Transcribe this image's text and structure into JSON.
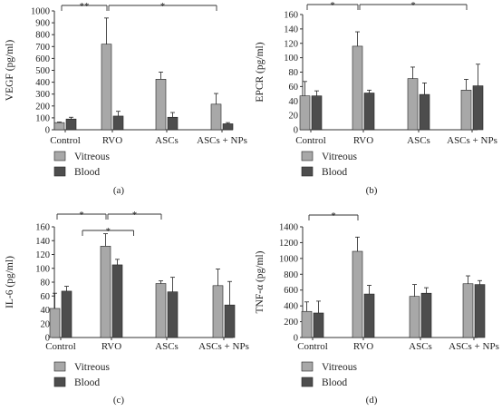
{
  "colors": {
    "vitreous": "#a8a8a8",
    "blood": "#4d4d4d",
    "axis": "#333333",
    "bracket": "#333333"
  },
  "chart_data": [
    {
      "type": "bar",
      "panel_label": "(a)",
      "ylabel": "VEGF (pg/ml)",
      "categories": [
        "Control",
        "RVO",
        "ASCs",
        "ASCs + NPs"
      ],
      "ylim": [
        0,
        1000
      ],
      "yticks": [
        0,
        100,
        200,
        300,
        400,
        500,
        600,
        700,
        800,
        900,
        1000
      ],
      "series": [
        {
          "name": "Vitreous",
          "values": [
            60,
            720,
            425,
            215
          ],
          "errors": [
            5,
            220,
            60,
            90
          ]
        },
        {
          "name": "Blood",
          "values": [
            90,
            115,
            105,
            50
          ],
          "errors": [
            15,
            40,
            40,
            10
          ]
        }
      ],
      "legend": [
        "Vitreous",
        "Blood"
      ],
      "annotations": [
        {
          "from": 0,
          "to": 1,
          "text": "**"
        },
        {
          "from": 1,
          "to": 3,
          "text": "*"
        }
      ]
    },
    {
      "type": "bar",
      "panel_label": "(b)",
      "ylabel": "EPCR (pg/ml)",
      "categories": [
        "Control",
        "RVO",
        "ASCs",
        "ASCs + NPs"
      ],
      "ylim": [
        0,
        160
      ],
      "yticks": [
        0,
        20,
        40,
        60,
        80,
        100,
        120,
        140,
        160
      ],
      "series": [
        {
          "name": "Vitreous",
          "values": [
            47,
            116,
            71,
            55
          ],
          "errors": [
            20,
            20,
            16,
            15
          ]
        },
        {
          "name": "Blood",
          "values": [
            47,
            51,
            49,
            61
          ],
          "errors": [
            7,
            4,
            16,
            30
          ]
        }
      ],
      "legend": [
        "Vitreous",
        "Blood"
      ],
      "annotations": [
        {
          "from": 0,
          "to": 1,
          "text": "*"
        },
        {
          "from": 1,
          "to": 3,
          "text": "*"
        }
      ]
    },
    {
      "type": "bar",
      "panel_label": "(c)",
      "ylabel": "IL-6 (pg/ml)",
      "categories": [
        "Control",
        "RVO",
        "ASCs",
        "ASCs + NPs"
      ],
      "ylim": [
        0,
        160
      ],
      "yticks": [
        0,
        20,
        40,
        60,
        80,
        100,
        120,
        140,
        160
      ],
      "series": [
        {
          "name": "Vitreous",
          "values": [
            42,
            132,
            78,
            75
          ],
          "errors": [
            22,
            18,
            4,
            24
          ]
        },
        {
          "name": "Blood",
          "values": [
            67,
            105,
            66,
            47
          ],
          "errors": [
            7,
            8,
            21,
            34
          ]
        }
      ],
      "legend": [
        "Vitreous",
        "Blood"
      ],
      "annotations": [
        {
          "from": 0,
          "to": 1,
          "text": "*"
        },
        {
          "from": 1,
          "to": 2,
          "text": "*"
        },
        {
          "from": 0.5,
          "to": 1.5,
          "text": "*",
          "level": 2
        }
      ]
    },
    {
      "type": "bar",
      "panel_label": "(d)",
      "ylabel": "TNF-α (pg/ml)",
      "categories": [
        "Control",
        "RVO",
        "ASCs",
        "ASCs + NPs"
      ],
      "ylim": [
        0,
        1400
      ],
      "yticks": [
        0,
        200,
        400,
        600,
        800,
        1000,
        1200,
        1400
      ],
      "series": [
        {
          "name": "Vitreous",
          "values": [
            330,
            1090,
            520,
            680
          ],
          "errors": [
            120,
            180,
            150,
            100
          ]
        },
        {
          "name": "Blood",
          "values": [
            310,
            550,
            560,
            670
          ],
          "errors": [
            150,
            110,
            70,
            50
          ]
        }
      ],
      "legend": [
        "Vitreous",
        "Blood"
      ],
      "annotations": [
        {
          "from": 0,
          "to": 1,
          "text": "*"
        }
      ]
    }
  ]
}
